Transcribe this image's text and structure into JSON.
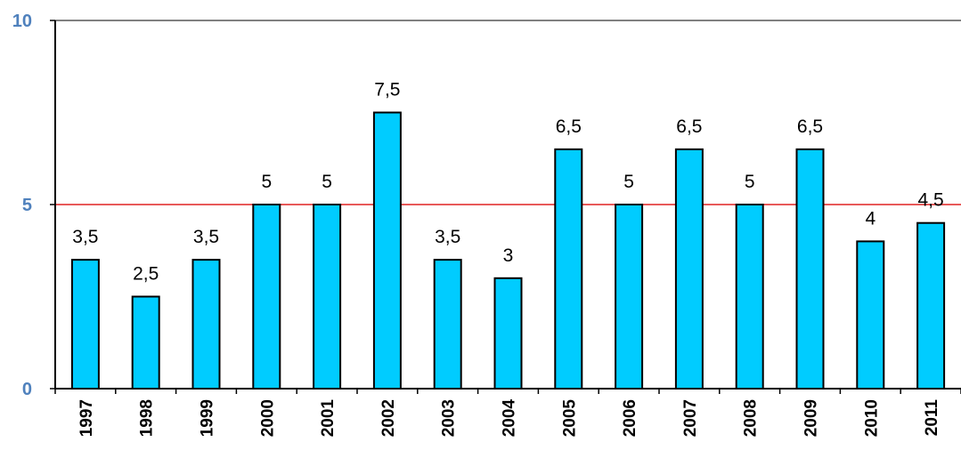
{
  "chart_data": {
    "type": "bar",
    "categories": [
      "1997",
      "1998",
      "1999",
      "2000",
      "2001",
      "2002",
      "2003",
      "2004",
      "2005",
      "2006",
      "2007",
      "2008",
      "2009",
      "2010",
      "2011"
    ],
    "values": [
      3.5,
      2.5,
      3.5,
      5,
      5,
      7.5,
      3.5,
      3,
      6.5,
      5,
      6.5,
      5,
      6.5,
      4,
      4.5
    ],
    "data_labels": [
      "3,5",
      "2,5",
      "3,5",
      "5",
      "5",
      "7,5",
      "3,5",
      "3",
      "6,5",
      "5",
      "6,5",
      "5",
      "6,5",
      "4",
      "4,5"
    ],
    "y_ticks": [
      "0",
      "5",
      "10"
    ],
    "ylim": [
      0,
      10
    ],
    "reference_line": 5,
    "title": "",
    "xlabel": "",
    "ylabel": "",
    "grid": false,
    "colors": {
      "bar_fill": "#00ccff",
      "bar_stroke": "#000000",
      "reference_line": "#e02020",
      "y_tick_label": "#4f81bd",
      "axis": "#000000"
    }
  }
}
